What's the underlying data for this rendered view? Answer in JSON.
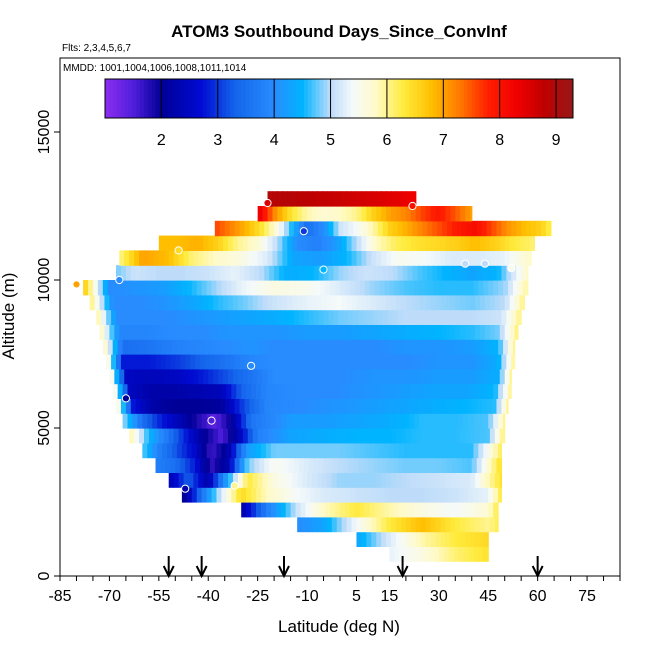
{
  "chart_data": {
    "type": "heatmap",
    "title": "ATOM3 Southbound Days_Since_ConvInf",
    "subtitle_flights": "Flts: 2,3,4,5,6,7",
    "subtitle_dates": "MMDD: 1001,1004,1006,1008,1011,1014",
    "xlabel": "Latitude (deg N)",
    "ylabel": "Altitude (m)",
    "xlim": [
      -85,
      85
    ],
    "ylim": [
      0,
      17500
    ],
    "x_ticks": [
      -85,
      -70,
      -55,
      -40,
      -25,
      -10,
      5,
      15,
      30,
      45,
      60,
      75
    ],
    "y_ticks": [
      0,
      5000,
      10000,
      15000
    ],
    "colorbar": {
      "min": 1,
      "max": 9.3,
      "ticks": [
        2,
        3,
        4,
        5,
        6,
        7,
        8,
        9
      ]
    },
    "arrows_latitude": [
      -52,
      -42,
      -17,
      19,
      60
    ],
    "profile_points": [
      {
        "x": -80,
        "y": 9850,
        "v": 7.0
      },
      {
        "x": -67,
        "y": 10000,
        "v": 4.0
      },
      {
        "x": -65,
        "y": 6000,
        "v": 2.0
      },
      {
        "x": -49,
        "y": 11000,
        "v": 6.5
      },
      {
        "x": -47,
        "y": 2950,
        "v": 2.2
      },
      {
        "x": -39,
        "y": 5250,
        "v": 1.5
      },
      {
        "x": -32,
        "y": 3050,
        "v": 6.0
      },
      {
        "x": -27,
        "y": 7100,
        "v": 4.0
      },
      {
        "x": -22,
        "y": 12600,
        "v": 8.5
      },
      {
        "x": -11,
        "y": 11650,
        "v": 3.0
      },
      {
        "x": -5,
        "y": 10350,
        "v": 4.5
      },
      {
        "x": 22,
        "y": 12500,
        "v": 8.0
      },
      {
        "x": 38,
        "y": 10550,
        "v": 5.0
      },
      {
        "x": 44,
        "y": 10550,
        "v": 5.0
      },
      {
        "x": 52,
        "y": 10400,
        "v": 5.5
      }
    ],
    "rows": [
      {
        "ylo": 500,
        "yhi": 1000,
        "xs": [
          15,
          25,
          35,
          45
        ],
        "vs": [
          5.3,
          5.6,
          6.1,
          6.4
        ]
      },
      {
        "ylo": 1000,
        "yhi": 1500,
        "xs": [
          5,
          15,
          25,
          35,
          45
        ],
        "vs": [
          4.3,
          5.2,
          5.9,
          6.3,
          6.5
        ]
      },
      {
        "ylo": 1500,
        "yhi": 2000,
        "xs": [
          -13,
          -5,
          5,
          15,
          25,
          35,
          45,
          48
        ],
        "vs": [
          4.0,
          4.3,
          5.4,
          6.3,
          6.8,
          6.3,
          6.0,
          6.2
        ]
      },
      {
        "ylo": 2000,
        "yhi": 2500,
        "xs": [
          -30,
          -22,
          -13,
          -5,
          5,
          15,
          25,
          35,
          45,
          48
        ],
        "vs": [
          2.2,
          3.8,
          5.1,
          5.8,
          6.3,
          5.9,
          5.6,
          5.4,
          5.7,
          6.3
        ]
      },
      {
        "ylo": 2500,
        "yhi": 3000,
        "xs": [
          -48,
          -38,
          -30,
          -22,
          -13,
          -5,
          5,
          15,
          25,
          35,
          45,
          49
        ],
        "vs": [
          1.8,
          4.7,
          6.5,
          5.8,
          5.4,
          5.2,
          5.1,
          5.0,
          5.0,
          5.1,
          5.3,
          6.3
        ]
      },
      {
        "ylo": 3000,
        "yhi": 3500,
        "xs": [
          -52,
          -46,
          -40,
          -34,
          -28,
          -20,
          -10,
          0,
          10,
          20,
          30,
          40,
          49
        ],
        "vs": [
          2.3,
          3.3,
          2.2,
          4.4,
          6.3,
          5.6,
          5.2,
          4.9,
          4.9,
          5.0,
          5.1,
          5.2,
          6.4
        ]
      },
      {
        "ylo": 3500,
        "yhi": 4000,
        "xs": [
          -56,
          -50,
          -44,
          -39,
          -34,
          -28,
          -20,
          -10,
          0,
          10,
          20,
          30,
          40,
          49
        ],
        "vs": [
          3.8,
          3.5,
          2.8,
          1.7,
          2.3,
          4.8,
          5.5,
          5.2,
          5.0,
          4.9,
          4.8,
          4.8,
          4.7,
          6.5
        ]
      },
      {
        "ylo": 4000,
        "yhi": 4500,
        "xs": [
          -60,
          -55,
          -49,
          -44,
          -39,
          -34,
          -28,
          -20,
          -10,
          0,
          10,
          20,
          30,
          40,
          49
        ],
        "vs": [
          4.8,
          3.8,
          3.1,
          2.6,
          1.6,
          2.2,
          4.2,
          4.8,
          4.8,
          4.8,
          4.7,
          4.6,
          4.6,
          4.6,
          6.2
        ]
      },
      {
        "ylo": 4500,
        "yhi": 5000,
        "xs": [
          -64,
          -58,
          -52,
          -46,
          -41,
          -36,
          -31,
          -25,
          -15,
          -5,
          5,
          15,
          25,
          35,
          45,
          50
        ],
        "vs": [
          6.0,
          4.5,
          3.6,
          2.7,
          2.0,
          1.5,
          2.3,
          3.8,
          4.3,
          4.4,
          4.5,
          4.5,
          4.6,
          4.6,
          4.7,
          6.2
        ]
      },
      {
        "ylo": 5000,
        "yhi": 5500,
        "xs": [
          -66,
          -60,
          -54,
          -48,
          -43,
          -38,
          -33,
          -27,
          -15,
          -5,
          5,
          15,
          25,
          35,
          45,
          50
        ],
        "vs": [
          5.0,
          3.5,
          2.8,
          2.3,
          1.8,
          1.4,
          2.0,
          3.6,
          4.2,
          4.2,
          4.3,
          4.4,
          4.6,
          4.6,
          4.7,
          6.0
        ]
      },
      {
        "ylo": 5500,
        "yhi": 6000,
        "xs": [
          -68,
          -63,
          -57,
          -50,
          -43,
          -36,
          -30,
          -22,
          -12,
          -2,
          8,
          18,
          28,
          38,
          47,
          51
        ],
        "vs": [
          6.0,
          2.8,
          2.2,
          2.0,
          2.0,
          2.1,
          3.0,
          3.9,
          4.0,
          4.1,
          4.2,
          4.3,
          4.4,
          4.5,
          4.6,
          6.0
        ]
      },
      {
        "ylo": 6000,
        "yhi": 6500,
        "xs": [
          -69,
          -64,
          -57,
          -50,
          -43,
          -36,
          -30,
          -22,
          -12,
          -2,
          8,
          18,
          28,
          38,
          47,
          52
        ],
        "vs": [
          6.0,
          2.5,
          2.2,
          2.2,
          2.3,
          2.4,
          3.3,
          3.9,
          4.0,
          4.0,
          4.1,
          4.2,
          4.3,
          4.3,
          4.5,
          6.0
        ]
      },
      {
        "ylo": 6500,
        "yhi": 7000,
        "xs": [
          -70,
          -65,
          -58,
          -50,
          -42,
          -34,
          -27,
          -20,
          -10,
          0,
          10,
          20,
          30,
          40,
          48,
          52
        ],
        "vs": [
          6.0,
          2.5,
          2.4,
          2.5,
          2.8,
          3.2,
          3.6,
          4.0,
          4.0,
          4.0,
          4.1,
          4.1,
          4.2,
          4.2,
          4.4,
          6.0
        ]
      },
      {
        "ylo": 7000,
        "yhi": 7500,
        "xs": [
          -71,
          -66,
          -58,
          -50,
          -42,
          -34,
          -27,
          -20,
          -10,
          0,
          10,
          20,
          30,
          40,
          48,
          53
        ],
        "vs": [
          6.0,
          2.8,
          2.8,
          3.0,
          3.3,
          3.6,
          3.9,
          4.0,
          4.0,
          4.0,
          4.0,
          4.0,
          4.1,
          4.1,
          4.4,
          6.0
        ]
      },
      {
        "ylo": 7500,
        "yhi": 8000,
        "xs": [
          -72,
          -66,
          -58,
          -50,
          -42,
          -34,
          -27,
          -20,
          -10,
          0,
          10,
          20,
          30,
          40,
          48,
          53
        ],
        "vs": [
          6.0,
          3.5,
          3.6,
          3.8,
          3.9,
          4.0,
          4.1,
          4.0,
          4.0,
          4.0,
          4.0,
          4.1,
          4.1,
          4.2,
          4.5,
          6.0
        ]
      },
      {
        "ylo": 8000,
        "yhi": 8500,
        "xs": [
          -73,
          -67,
          -59,
          -50,
          -42,
          -34,
          -27,
          -20,
          -10,
          0,
          10,
          20,
          30,
          40,
          48,
          54
        ],
        "vs": [
          6.0,
          3.9,
          3.9,
          4.0,
          4.0,
          4.1,
          4.1,
          4.1,
          4.2,
          4.2,
          4.3,
          4.4,
          4.5,
          4.6,
          4.8,
          6.1
        ]
      },
      {
        "ylo": 8500,
        "yhi": 9000,
        "xs": [
          -74,
          -68,
          -60,
          -52,
          -44,
          -36,
          -28,
          -20,
          -10,
          0,
          10,
          20,
          30,
          40,
          49,
          55
        ],
        "vs": [
          6.1,
          4.0,
          4.0,
          4.0,
          4.1,
          4.2,
          4.3,
          4.4,
          4.6,
          4.8,
          4.9,
          5.0,
          5.0,
          5.0,
          5.1,
          6.1
        ]
      },
      {
        "ylo": 9000,
        "yhi": 9500,
        "xs": [
          -76,
          -69,
          -61,
          -53,
          -45,
          -37,
          -29,
          -20,
          -10,
          0,
          10,
          20,
          30,
          40,
          50,
          56
        ],
        "vs": [
          6.2,
          4.0,
          4.0,
          4.1,
          4.3,
          4.6,
          4.8,
          5.1,
          5.3,
          5.4,
          5.2,
          5.0,
          4.9,
          4.8,
          5.0,
          6.1
        ]
      },
      {
        "ylo": 9500,
        "yhi": 10000,
        "xs": [
          -78,
          -70,
          -62,
          -54,
          -46,
          -38,
          -30,
          -20,
          -10,
          0,
          10,
          20,
          30,
          40,
          50,
          57
        ],
        "vs": [
          6.8,
          4.0,
          4.1,
          4.2,
          4.5,
          4.9,
          5.3,
          5.6,
          5.5,
          5.2,
          4.9,
          4.7,
          4.6,
          4.6,
          4.9,
          6.0
        ]
      },
      {
        "ylo": 10000,
        "yhi": 10500,
        "xs": [
          -68,
          -62,
          -55,
          -48,
          -40,
          -32,
          -24,
          -16,
          -8,
          0,
          8,
          16,
          24,
          32,
          40,
          48,
          57
        ],
        "vs": [
          4.8,
          5.1,
          5.0,
          5.0,
          5.1,
          5.3,
          5.0,
          4.4,
          4.5,
          4.9,
          5.1,
          5.0,
          4.7,
          4.5,
          4.3,
          4.5,
          5.8
        ]
      },
      {
        "ylo": 10500,
        "yhi": 11000,
        "xs": [
          -67,
          -60,
          -52,
          -45,
          -38,
          -30,
          -22,
          -14,
          -6,
          2,
          10,
          18,
          26,
          34,
          42,
          50,
          58
        ],
        "vs": [
          6.0,
          7.0,
          6.8,
          6.1,
          5.8,
          5.6,
          5.2,
          4.3,
          4.2,
          4.5,
          5.1,
          5.5,
          5.4,
          5.2,
          5.2,
          5.3,
          5.8
        ]
      },
      {
        "ylo": 11000,
        "yhi": 11500,
        "xs": [
          -55,
          -49,
          -43,
          -37,
          -31,
          -25,
          -19,
          -13,
          -7,
          -1,
          5,
          11,
          17,
          23,
          29,
          35,
          41,
          47,
          53,
          59
        ],
        "vs": [
          6.8,
          6.8,
          6.9,
          6.6,
          6.0,
          5.7,
          5.0,
          4.0,
          3.8,
          4.2,
          5.0,
          5.8,
          6.2,
          6.4,
          6.5,
          6.6,
          6.8,
          6.6,
          6.3,
          6.1
        ]
      },
      {
        "ylo": 11500,
        "yhi": 12000,
        "xs": [
          -38,
          -34,
          -29,
          -24,
          -19,
          -14,
          -10,
          -5,
          0,
          5,
          10,
          15,
          20,
          26,
          31,
          36,
          41,
          46,
          51,
          56,
          61,
          64
        ],
        "vs": [
          7.6,
          7.3,
          6.9,
          6.4,
          5.6,
          4.4,
          3.5,
          4.0,
          5.1,
          5.4,
          5.9,
          6.6,
          6.9,
          7.3,
          7.6,
          7.9,
          8.1,
          7.6,
          7.1,
          6.8,
          6.6,
          6.2
        ]
      },
      {
        "ylo": 12000,
        "yhi": 12500,
        "xs": [
          -25,
          -20,
          -15,
          -10,
          -5,
          0,
          5,
          10,
          15,
          20,
          25,
          30,
          35,
          40
        ],
        "vs": [
          8.5,
          7.2,
          6.4,
          5.9,
          5.7,
          5.8,
          6.0,
          6.6,
          7.0,
          7.2,
          7.6,
          7.9,
          7.5,
          7.0
        ]
      },
      {
        "ylo": 12500,
        "yhi": 13000,
        "xs": [
          -22,
          -15,
          -8,
          -1,
          6,
          13,
          18,
          23
        ],
        "vs": [
          8.9,
          8.9,
          8.8,
          8.7,
          8.6,
          8.5,
          8.4,
          8.3
        ]
      }
    ]
  }
}
